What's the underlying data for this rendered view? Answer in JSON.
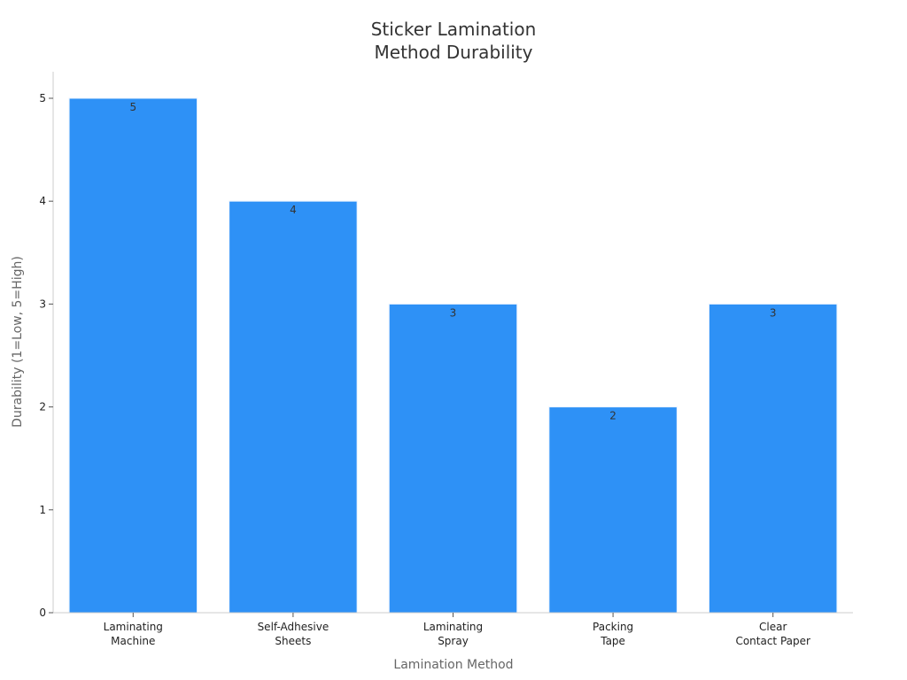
{
  "chart_data": {
    "type": "bar",
    "title": [
      "Sticker Lamination",
      "Method Durability"
    ],
    "xlabel": "Lamination Method",
    "ylabel": "Durability (1=Low, 5=High)",
    "categories": [
      [
        "Laminating",
        "Machine"
      ],
      [
        "Self-Adhesive",
        "Sheets"
      ],
      [
        "Laminating",
        "Spray"
      ],
      [
        "Packing",
        "Tape"
      ],
      [
        "Clear",
        "Contact Paper"
      ]
    ],
    "values": [
      5,
      4,
      3,
      2,
      3
    ],
    "data_labels": [
      "5",
      "4",
      "3",
      "2",
      "3"
    ],
    "yticks": [
      0,
      1,
      2,
      3,
      4,
      5
    ],
    "ylim": [
      0,
      5
    ],
    "grid": false,
    "legend": "none",
    "bar_color": "#2e91f6"
  }
}
